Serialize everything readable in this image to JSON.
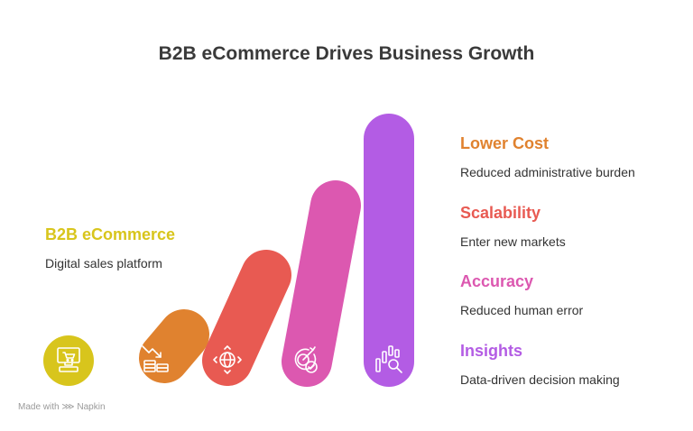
{
  "title": "B2B eCommerce Drives Business Growth",
  "start": {
    "heading": "B2B eCommerce",
    "description": "Digital sales platform",
    "color": "#d8c51c",
    "icon": "computer-cart-icon"
  },
  "outcomes": [
    {
      "heading": "Lower Cost",
      "description": "Reduced administrative burden",
      "color": "#e0822f",
      "icon": "coins-down-icon"
    },
    {
      "heading": "Scalability",
      "description": "Enter new markets",
      "color": "#e85a52",
      "icon": "globe-arrows-icon"
    },
    {
      "heading": "Accuracy",
      "description": "Reduced human error",
      "color": "#dc58b0",
      "icon": "target-check-icon"
    },
    {
      "heading": "Insights",
      "description": "Data-driven decision making",
      "color": "#b35ce4",
      "icon": "chart-search-icon"
    }
  ],
  "footer": {
    "made_with": "Made with",
    "brand": "Napkin"
  }
}
